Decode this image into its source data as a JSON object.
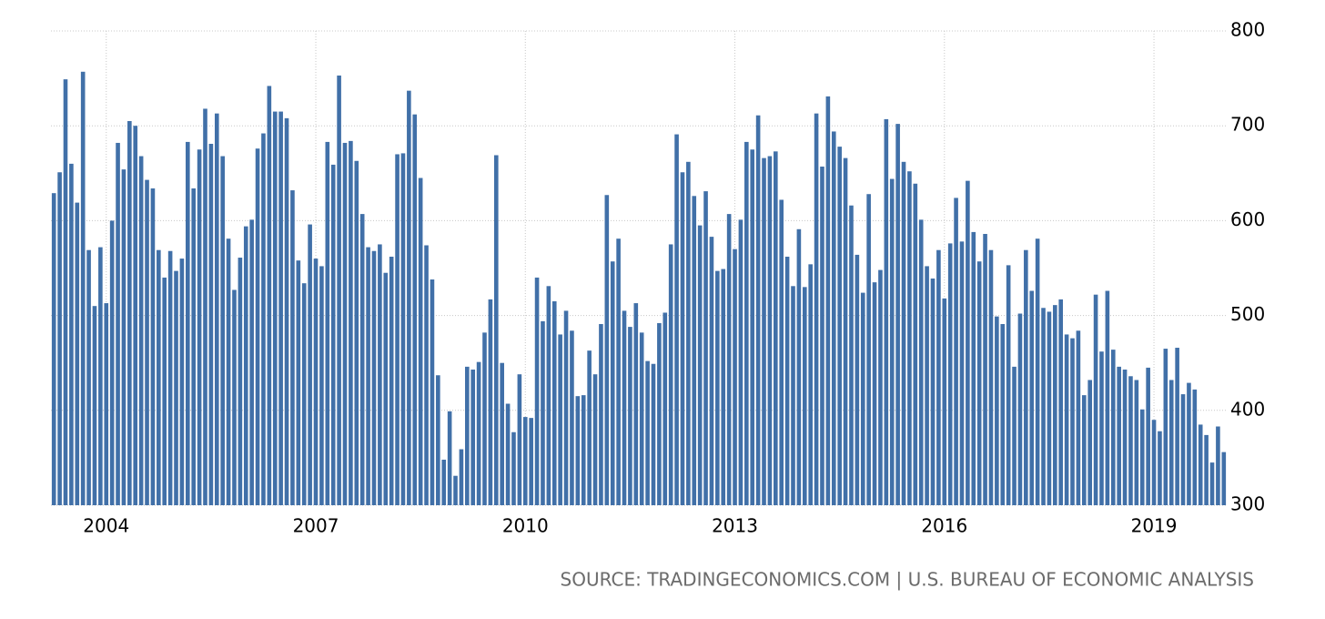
{
  "chart_data": {
    "type": "bar",
    "source": "SOURCE: TRADINGECONOMICS.COM | U.S. BUREAU OF ECONOMIC ANALYSIS",
    "categories": [
      null,
      null,
      null,
      null,
      null,
      null,
      null,
      null,
      null,
      "2004",
      null,
      null,
      null,
      null,
      null,
      null,
      null,
      null,
      null,
      null,
      null,
      null,
      null,
      null,
      null,
      null,
      null,
      null,
      null,
      null,
      null,
      null,
      null,
      null,
      null,
      null,
      null,
      null,
      null,
      null,
      null,
      null,
      null,
      null,
      null,
      "2007",
      null,
      null,
      null,
      null,
      null,
      null,
      null,
      null,
      null,
      null,
      null,
      null,
      null,
      null,
      null,
      null,
      null,
      null,
      null,
      null,
      null,
      null,
      null,
      null,
      null,
      null,
      null,
      null,
      null,
      null,
      null,
      null,
      null,
      null,
      null,
      "2010",
      null,
      null,
      null,
      null,
      null,
      null,
      null,
      null,
      null,
      null,
      null,
      null,
      null,
      null,
      null,
      null,
      null,
      null,
      null,
      null,
      null,
      null,
      null,
      null,
      null,
      null,
      null,
      null,
      null,
      null,
      null,
      null,
      null,
      null,
      null,
      "2013",
      null,
      null,
      null,
      null,
      null,
      null,
      null,
      null,
      null,
      null,
      null,
      null,
      null,
      null,
      null,
      null,
      null,
      null,
      null,
      null,
      null,
      null,
      null,
      null,
      null,
      null,
      null,
      null,
      null,
      null,
      null,
      null,
      null,
      null,
      null,
      "2016",
      null,
      null,
      null,
      null,
      null,
      null,
      null,
      null,
      null,
      null,
      null,
      null,
      null,
      null,
      null,
      null,
      null,
      null,
      null,
      null,
      null,
      null,
      null,
      null,
      null,
      null,
      null,
      null,
      null,
      null,
      null,
      null,
      null,
      null,
      null,
      "2019",
      null,
      null,
      null,
      null,
      null,
      null,
      null,
      null,
      null,
      null,
      null,
      null
    ],
    "values": [
      629,
      651,
      749,
      660,
      619,
      757,
      569,
      510,
      572,
      513,
      600,
      682,
      654,
      705,
      700,
      668,
      643,
      634,
      569,
      540,
      568,
      547,
      560,
      683,
      634,
      675,
      718,
      681,
      713,
      668,
      581,
      527,
      561,
      594,
      601,
      676,
      692,
      742,
      715,
      715,
      708,
      632,
      558,
      534,
      596,
      560,
      552,
      683,
      659,
      753,
      682,
      684,
      663,
      607,
      572,
      568,
      575,
      545,
      562,
      670,
      671,
      737,
      712,
      645,
      574,
      538,
      437,
      348,
      399,
      331,
      359,
      446,
      443,
      451,
      482,
      517,
      669,
      450,
      407,
      377,
      438,
      393,
      392,
      540,
      494,
      531,
      515,
      480,
      505,
      484,
      415,
      416,
      463,
      438,
      491,
      627,
      557,
      581,
      505,
      488,
      513,
      482,
      452,
      449,
      492,
      503,
      575,
      691,
      651,
      662,
      626,
      595,
      631,
      583,
      547,
      549,
      607,
      570,
      601,
      683,
      675,
      711,
      666,
      668,
      673,
      622,
      562,
      531,
      591,
      530,
      554,
      713,
      657,
      731,
      694,
      678,
      666,
      616,
      564,
      524,
      628,
      535,
      548,
      707,
      644,
      702,
      662,
      652,
      639,
      601,
      552,
      539,
      569,
      518,
      576,
      624,
      578,
      642,
      588,
      557,
      586,
      569,
      499,
      491,
      553,
      446,
      502,
      569,
      526,
      581,
      508,
      504,
      511,
      517,
      480,
      476,
      484,
      416,
      432,
      522,
      462,
      526,
      464,
      446,
      443,
      436,
      432,
      401,
      445,
      390,
      378,
      465,
      432,
      466,
      417,
      429,
      422,
      385,
      374,
      345,
      383,
      356
    ],
    "color": "#4170a8",
    "ylim": [
      300,
      800
    ],
    "yticks": [
      300,
      400,
      500,
      600,
      700,
      800
    ],
    "grid": true
  }
}
